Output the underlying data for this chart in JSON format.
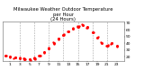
{
  "title": "Milwaukee Weather Outdoor Temperature\nper Hour\n(24 Hours)",
  "hours": [
    0,
    1,
    2,
    3,
    4,
    5,
    6,
    7,
    8,
    9,
    10,
    11,
    12,
    13,
    14,
    15,
    16,
    17,
    18,
    19,
    20,
    21,
    22,
    23
  ],
  "temps": [
    22,
    20,
    19,
    18,
    17,
    16,
    18,
    22,
    27,
    33,
    40,
    47,
    53,
    58,
    62,
    65,
    67,
    64,
    57,
    49,
    41,
    36,
    40,
    37
  ],
  "dot_color": "#ff0000",
  "bg_color": "#ffffff",
  "grid_color": "#999999",
  "text_color": "#000000",
  "ylim": [
    14,
    72
  ],
  "yticks": [
    20,
    30,
    40,
    50,
    60,
    70
  ],
  "ytick_labels": [
    "20",
    "30",
    "40",
    "50",
    "60",
    "70"
  ],
  "grid_x_positions": [
    3,
    6,
    9,
    12,
    15,
    18,
    21
  ],
  "xtick_positions": [
    1,
    3,
    5,
    7,
    9,
    11,
    13,
    15,
    17,
    19,
    21,
    23
  ],
  "xtick_labels": [
    "1",
    "3",
    "5",
    "7",
    "9",
    "11",
    "13",
    "15",
    "17",
    "19",
    "21",
    "23"
  ],
  "dot_size": 1.5,
  "title_fontsize": 3.8,
  "tick_fontsize": 3.2,
  "xlim": [
    -0.5,
    24.5
  ]
}
